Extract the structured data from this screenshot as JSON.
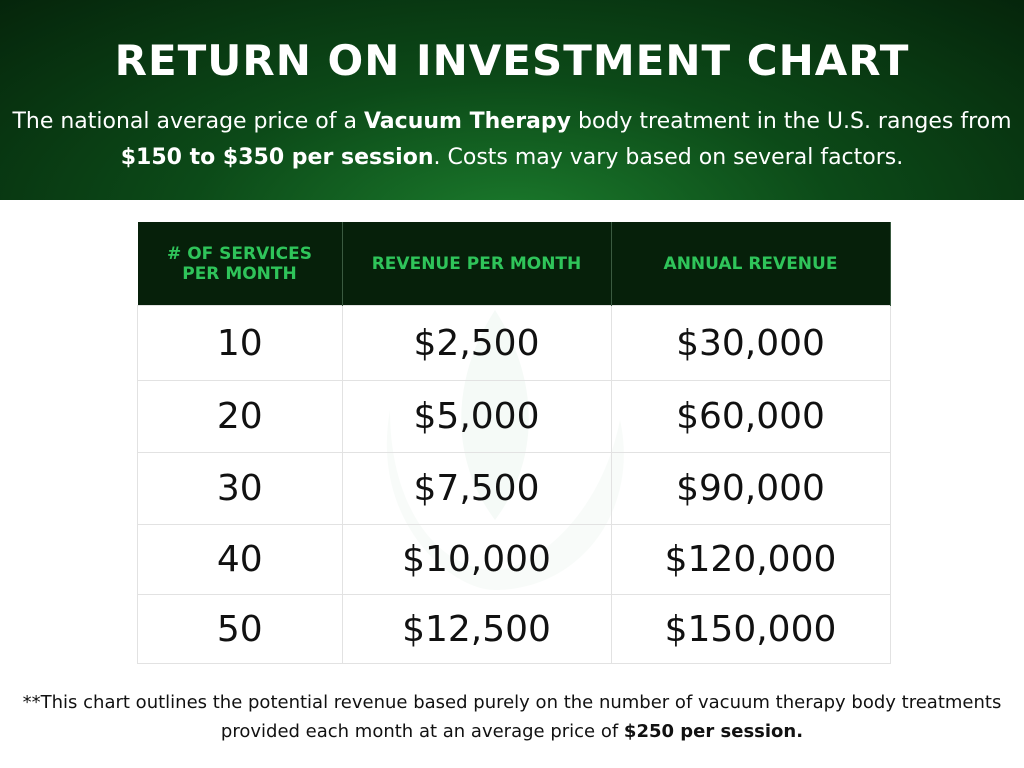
{
  "header": {
    "title": "RETURN ON INVESTMENT CHART",
    "subtitle": [
      "The national average price of a ",
      "Vacuum Therapy",
      " body treatment in the U.S. ranges from ",
      "$150 to $350 per session",
      ". Costs may vary based on several factors."
    ]
  },
  "table": {
    "headers": [
      "# OF SERVICES PER MONTH",
      "REVENUE PER MONTH",
      "ANNUAL REVENUE"
    ],
    "rows": [
      [
        "10",
        "$2,500",
        "$30,000"
      ],
      [
        "20",
        "$5,000",
        "$60,000"
      ],
      [
        "30",
        "$7,500",
        "$90,000"
      ],
      [
        "40",
        "$10,000",
        "$120,000"
      ],
      [
        "50",
        "$12,500",
        "$150,000"
      ]
    ]
  },
  "footnote": [
    "**This chart outlines the potential revenue based purely on the number of vacuum therapy body treatments provided each month at an average price of ",
    "$250 per session."
  ]
}
